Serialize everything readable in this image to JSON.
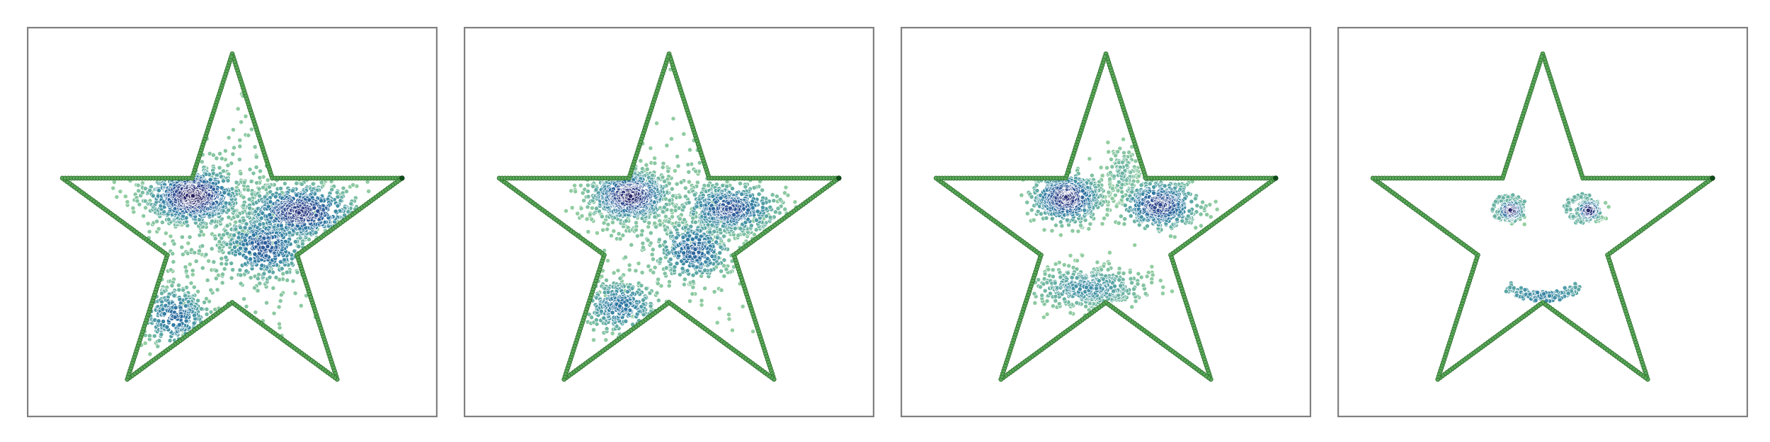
{
  "chart_data": {
    "type": "scatter",
    "title": "",
    "xlabel": "",
    "ylabel": "",
    "grid": false,
    "legend": "none",
    "boundary": {
      "shape": "five-point-star",
      "color": "#5aa95a",
      "edge_color": "#2f6f2f",
      "end_color": "#0d4d1a",
      "vertices": [
        [
          0.0,
          1.0
        ],
        [
          0.2245,
          0.309
        ],
        [
          0.9511,
          0.309
        ],
        [
          0.3633,
          -0.118
        ],
        [
          0.5878,
          -0.809
        ],
        [
          0.0,
          -0.382
        ],
        [
          -0.5878,
          -0.809
        ],
        [
          -0.3633,
          -0.118
        ],
        [
          -0.9511,
          0.309
        ],
        [
          -0.2245,
          0.309
        ]
      ]
    },
    "colormap": {
      "name": "crest",
      "stops": [
        "#a4d9a0",
        "#71b8a3",
        "#4a98a8",
        "#2f79a3",
        "#2f5a9a",
        "#2d3e86",
        "#2a1f5e"
      ]
    },
    "xlim": [
      -1.15,
      1.15
    ],
    "ylim": [
      -1.02,
      1.15
    ],
    "panels": [
      {
        "name": "panel-1",
        "clusters": [
          {
            "center": [
              -0.22,
              0.21
            ],
            "spread": [
              0.13,
              0.08
            ],
            "count": 800,
            "density": 1.0
          },
          {
            "center": [
              0.38,
              0.12
            ],
            "spread": [
              0.16,
              0.08
            ],
            "count": 620,
            "density": 0.85
          },
          {
            "center": [
              0.18,
              -0.07
            ],
            "spread": [
              0.13,
              0.1
            ],
            "count": 380,
            "density": 0.65
          },
          {
            "center": [
              -0.32,
              -0.46
            ],
            "spread": [
              0.1,
              0.09
            ],
            "count": 260,
            "density": 0.55
          },
          {
            "center": [
              0.05,
              0.05
            ],
            "spread": [
              0.34,
              0.34
            ],
            "count": 380,
            "density": 0.1
          }
        ]
      },
      {
        "name": "panel-2",
        "clusters": [
          {
            "center": [
              -0.22,
              0.21
            ],
            "spread": [
              0.11,
              0.07
            ],
            "count": 700,
            "density": 0.95
          },
          {
            "center": [
              0.34,
              0.14
            ],
            "spread": [
              0.14,
              0.07
            ],
            "count": 520,
            "density": 0.7
          },
          {
            "center": [
              0.14,
              -0.09
            ],
            "spread": [
              0.11,
              0.09
            ],
            "count": 320,
            "density": 0.6
          },
          {
            "center": [
              -0.27,
              -0.4
            ],
            "spread": [
              0.11,
              0.08
            ],
            "count": 280,
            "density": 0.5
          },
          {
            "center": [
              0.05,
              0.05
            ],
            "spread": [
              0.3,
              0.3
            ],
            "count": 300,
            "density": 0.08
          }
        ]
      },
      {
        "name": "panel-3",
        "clusters": [
          {
            "center": [
              -0.22,
              0.2
            ],
            "spread": [
              0.1,
              0.07
            ],
            "count": 560,
            "density": 0.9
          },
          {
            "center": [
              0.3,
              0.16
            ],
            "spread": [
              0.11,
              0.07
            ],
            "count": 480,
            "density": 0.8
          },
          {
            "center": [
              -0.1,
              -0.3
            ],
            "spread": [
              0.17,
              0.06
            ],
            "count": 420,
            "density": 0.35
          },
          {
            "center": [
              0.09,
              0.33
            ],
            "spread": [
              0.05,
              0.08
            ],
            "count": 120,
            "density": 0.15
          }
        ]
      },
      {
        "name": "panel-4",
        "clusters": [
          {
            "center": [
              -0.18,
              0.13
            ],
            "spread": [
              0.035,
              0.028
            ],
            "count": 150,
            "density": 0.95
          },
          {
            "center": [
              0.26,
              0.13
            ],
            "spread": [
              0.035,
              0.028
            ],
            "count": 150,
            "density": 0.95
          },
          {
            "ring": true,
            "center": [
              -0.19,
              0.14
            ],
            "radius": [
              0.08,
              0.065
            ],
            "count": 90,
            "density": 0.15
          },
          {
            "ring": true,
            "center": [
              0.22,
              0.14
            ],
            "radius": [
              0.08,
              0.065
            ],
            "count": 90,
            "density": 0.15
          },
          {
            "smile": true,
            "center": [
              0.0,
              -0.3
            ],
            "width": 0.2,
            "depth": 0.05,
            "count": 170,
            "density": 0.4
          }
        ]
      }
    ]
  }
}
